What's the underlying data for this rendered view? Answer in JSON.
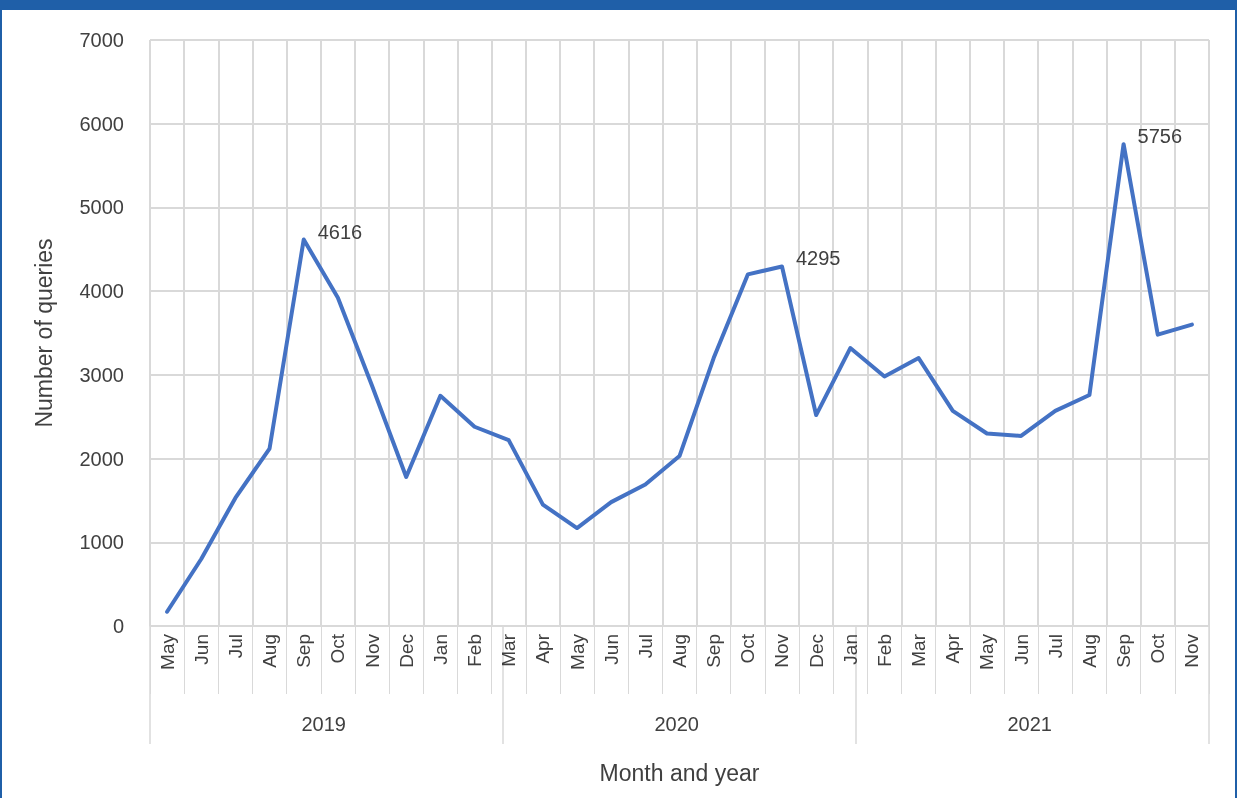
{
  "chart_data": {
    "type": "line",
    "xlabel": "Month and year",
    "ylabel": "Number of queries",
    "categories": [
      "May",
      "Jun",
      "Jul",
      "Aug",
      "Sep",
      "Oct",
      "Nov",
      "Dec",
      "Jan",
      "Feb",
      "Mar",
      "Apr",
      "May",
      "Jun",
      "Jul",
      "Aug",
      "Sep",
      "Oct",
      "Nov",
      "Dec",
      "Jan",
      "Feb",
      "Mar",
      "Apr",
      "May",
      "Jun",
      "Jul",
      "Aug",
      "Sep",
      "Oct",
      "Nov"
    ],
    "series": [
      {
        "color": "#4472c4",
        "values": [
          170,
          800,
          1530,
          2120,
          4616,
          3920,
          2870,
          1780,
          2750,
          2380,
          2220,
          1450,
          1170,
          1480,
          1690,
          2030,
          3200,
          4200,
          4295,
          2520,
          3320,
          2980,
          3200,
          2570,
          2300,
          2270,
          2570,
          2760,
          5756,
          3480,
          3600
        ],
        "value_labels": [
          null,
          null,
          null,
          null,
          "4616",
          null,
          null,
          null,
          null,
          null,
          null,
          null,
          null,
          null,
          null,
          null,
          null,
          null,
          "4295",
          null,
          null,
          null,
          null,
          null,
          null,
          null,
          null,
          null,
          "5756",
          null,
          null
        ]
      }
    ],
    "ylim": [
      0,
      7000
    ],
    "yticks": [
      0,
      1000,
      2000,
      3000,
      4000,
      5000,
      6000,
      7000
    ],
    "grid": true,
    "marker": "none",
    "line_style": "solid",
    "annotations": [
      "2019",
      "2020",
      "2021"
    ]
  }
}
